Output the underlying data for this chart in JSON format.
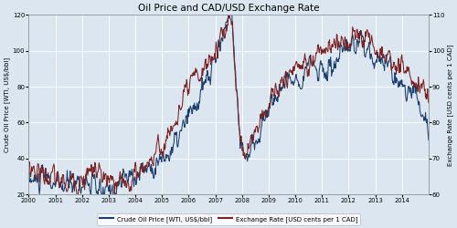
{
  "title": "Oil Price and CAD/USD Exchange Rate",
  "ylabel_left": "Crude Oil Price [WTI, US$/bbl]",
  "ylabel_right": "Exchange Rate [USD cents per 1 CAD]",
  "ylim_left": [
    20,
    120
  ],
  "ylim_right": [
    60,
    110
  ],
  "yticks_left": [
    20,
    40,
    60,
    80,
    100,
    120
  ],
  "yticks_right": [
    60,
    70,
    80,
    90,
    100,
    110
  ],
  "color_oil": "#1a3f6f",
  "color_fx": "#7b2020",
  "legend_labels": [
    "Crude Oil Price [WTI, US$/bbl]",
    "Exchange Rate [USD cents per 1 CAD]"
  ],
  "bg_color": "#dce6f0",
  "plot_bg": "#dce6f0",
  "grid_color": "#ffffff",
  "xtick_years": [
    2000,
    2001,
    2002,
    2003,
    2004,
    2005,
    2006,
    2007,
    2008,
    2009,
    2010,
    2011,
    2012,
    2013,
    2014
  ],
  "oil_waypoints": [
    28,
    27,
    29,
    28,
    25,
    24,
    26,
    28,
    27,
    26,
    22,
    20,
    22,
    25,
    28,
    30,
    32,
    34,
    36,
    38,
    40,
    44,
    50,
    58,
    65,
    72,
    80,
    90,
    100,
    115,
    120,
    60,
    38,
    45,
    55,
    65,
    72,
    78,
    82,
    85,
    88,
    90,
    92,
    90,
    88,
    92,
    95,
    98,
    102,
    105,
    102,
    98,
    95,
    90,
    88,
    82,
    78,
    75,
    70,
    55
  ],
  "fx_waypoints": [
    68,
    67,
    66,
    65,
    64,
    63,
    63,
    64,
    65,
    66,
    67,
    64,
    63,
    62,
    63,
    64,
    66,
    68,
    70,
    72,
    74,
    78,
    82,
    86,
    90,
    93,
    95,
    98,
    102,
    107,
    108,
    78,
    72,
    76,
    80,
    84,
    88,
    90,
    92,
    95,
    96,
    97,
    98,
    99,
    100,
    101,
    102,
    103,
    104,
    105,
    103,
    101,
    100,
    98,
    97,
    96,
    94,
    92,
    90,
    87
  ],
  "n_points": 720,
  "noise_oil": 2.5,
  "noise_fx": 1.2
}
